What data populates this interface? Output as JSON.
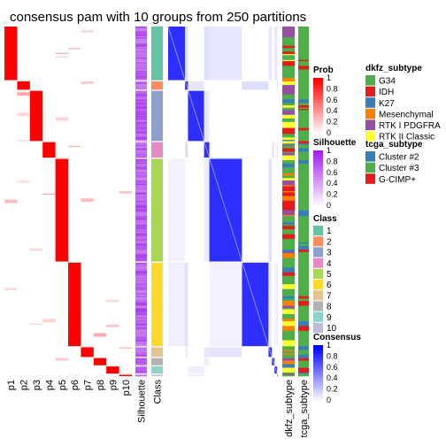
{
  "chart_data": {
    "type": "heatmap",
    "title": "consensus pam with 10 groups from 250 partitions",
    "membership_columns": [
      "p1",
      "p2",
      "p3",
      "p4",
      "p5",
      "p6",
      "p7",
      "p8",
      "p9",
      "p10"
    ],
    "annotation_columns": [
      "Silhouette",
      "Class"
    ],
    "sample_annotation_columns": [
      "dkfz_subtype",
      "tcga_subtype"
    ],
    "class_blocks": [
      {
        "class": 1,
        "size": 45
      },
      {
        "class": 2,
        "size": 8
      },
      {
        "class": 3,
        "size": 43
      },
      {
        "class": 4,
        "size": 14
      },
      {
        "class": 5,
        "size": 87
      },
      {
        "class": 6,
        "size": 71
      },
      {
        "class": 7,
        "size": 9
      },
      {
        "class": 8,
        "size": 7
      },
      {
        "class": 9,
        "size": 7
      },
      {
        "class": 10,
        "size": 2
      }
    ],
    "legends": {
      "prob": {
        "title": "Prob",
        "ticks": [
          "0",
          "0.2",
          "0.4",
          "0.6",
          "0.8",
          "1"
        ],
        "low_color": "#ffffff",
        "high_color": "#ff0000"
      },
      "silhouette": {
        "title": "Silhouette",
        "ticks": [
          "0",
          "0.2",
          "0.4",
          "0.6",
          "0.8",
          "1"
        ],
        "low_color": "#ffffff",
        "high_color": "#a020f0"
      },
      "class": {
        "title": "Class",
        "items": [
          {
            "label": "1",
            "color": "#66c2a5"
          },
          {
            "label": "2",
            "color": "#fc8d62"
          },
          {
            "label": "3",
            "color": "#8da0cb"
          },
          {
            "label": "4",
            "color": "#e78ac3"
          },
          {
            "label": "5",
            "color": "#a6d854"
          },
          {
            "label": "6",
            "color": "#ffd92f"
          },
          {
            "label": "7",
            "color": "#e5c494"
          },
          {
            "label": "8",
            "color": "#b3b3b3"
          },
          {
            "label": "9",
            "color": "#8dd3c7"
          },
          {
            "label": "10",
            "color": "#bebada"
          }
        ]
      },
      "consensus": {
        "title": "Consensus",
        "ticks": [
          "0",
          "0.2",
          "0.4",
          "0.6",
          "0.8",
          "1"
        ],
        "low_color": "#ffffff",
        "high_color": "#0000ff"
      },
      "dkfz_subtype": {
        "title": "dkfz_subtype",
        "items": [
          {
            "label": "G34",
            "color": "#4daf4a"
          },
          {
            "label": "IDH",
            "color": "#e41a1c"
          },
          {
            "label": "K27",
            "color": "#377eb8"
          },
          {
            "label": "Mesenchymal",
            "color": "#ff7f00"
          },
          {
            "label": "RTK I PDGFRA",
            "color": "#984ea3"
          },
          {
            "label": "RTK II Classic",
            "color": "#ffff33"
          }
        ]
      },
      "tcga_subtype": {
        "title": "tcga_subtype",
        "items": [
          {
            "label": "Cluster #2",
            "color": "#377eb8"
          },
          {
            "label": "Cluster #3",
            "color": "#4daf4a"
          },
          {
            "label": "G-CIMP+",
            "color": "#e41a1c"
          }
        ]
      }
    }
  }
}
